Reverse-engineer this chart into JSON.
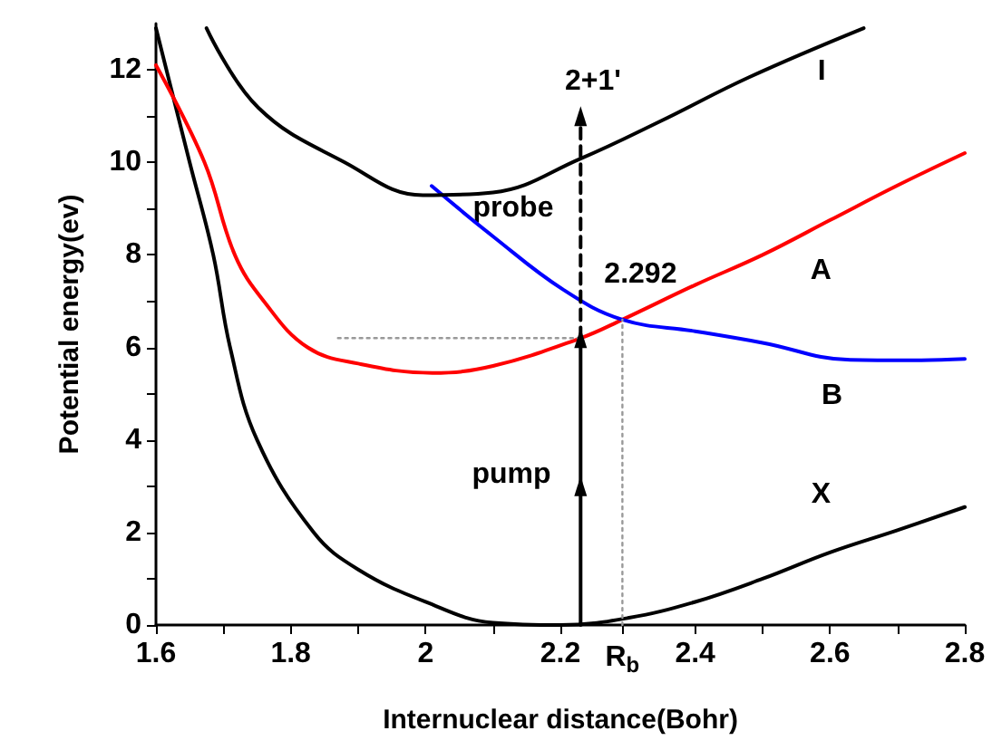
{
  "chart_data": {
    "type": "line",
    "xlabel": "Internuclear distance(Bohr)",
    "ylabel": "Potential energy(ev)",
    "xlim": [
      1.6,
      2.8
    ],
    "ylim": [
      0,
      13
    ],
    "xticks": [
      1.6,
      {
        "value": 1.7,
        "label": null
      },
      1.8,
      {
        "value": 1.9,
        "label": null
      },
      2.0,
      {
        "value": 2.1,
        "label": null
      },
      2.2,
      {
        "value": 2.292,
        "label": "R$_{b}$"
      },
      2.4,
      {
        "value": 2.5,
        "label": null
      },
      2.6,
      {
        "value": 2.7,
        "label": null
      },
      2.8
    ],
    "yticks": [
      0,
      {
        "value": 1,
        "label": null
      },
      2,
      {
        "value": 3,
        "label": null
      },
      4,
      {
        "value": 5,
        "label": null
      },
      6,
      {
        "value": 7,
        "label": null
      },
      8,
      {
        "value": 9,
        "label": null
      },
      10,
      {
        "value": 11,
        "label": null
      },
      12
    ],
    "marker": "none",
    "line_style": "solid",
    "series": [
      {
        "name": "X",
        "color": "#000000",
        "x": [
          1.6,
          1.65,
          1.685,
          1.71,
          1.75,
          1.834,
          1.9,
          2.0,
          2.1,
          2.2,
          2.3,
          2.4,
          2.5,
          2.6,
          2.7,
          2.8
        ],
        "values": [
          12.9,
          10,
          8,
          6,
          4,
          2,
          1.2,
          0.5,
          0.05,
          0,
          0.15,
          0.5,
          1.0,
          1.57,
          2.05,
          2.55
        ]
      },
      {
        "name": "A",
        "color": "#ff0000",
        "x": [
          1.6,
          1.672,
          1.717,
          1.76,
          1.825,
          1.9,
          2.01,
          2.1,
          2.23,
          2.292,
          2.4,
          2.5,
          2.6,
          2.7,
          2.8
        ],
        "values": [
          12.1,
          10,
          8,
          7,
          6,
          5.65,
          5.45,
          5.6,
          6.2,
          6.6,
          7.35,
          8.0,
          8.75,
          9.5,
          10.2
        ]
      },
      {
        "name": "B",
        "color": "#0000ff",
        "x": [
          2.009,
          2.1,
          2.204,
          2.292,
          2.4,
          2.5,
          2.63,
          2.72,
          2.8
        ],
        "values": [
          9.49,
          8.4,
          7.25,
          6.6,
          6.35,
          6.1,
          5.73,
          5.72,
          5.75
        ]
      },
      {
        "name": "I",
        "color": "#000000",
        "x": [
          1.675,
          1.752,
          1.88,
          1.996,
          2.1,
          2.23,
          2.35,
          2.48,
          2.65
        ],
        "values": [
          12.9,
          11.18,
          10,
          9.29,
          9.35,
          10.08,
          10.9,
          11.84,
          12.9
        ]
      },
      {
        "color": "#000000",
        "marker": "triangle",
        "x": [
          2.23,
          2.23,
          2.23
        ],
        "values": [
          0,
          3,
          6.2
        ]
      },
      {
        "color": "#000000",
        "marker": "triangle",
        "line_style": "dashed",
        "x": [
          2.23,
          2.23
        ],
        "values": [
          6.2,
          11.0
        ]
      },
      {
        "color": "#999999",
        "line_style": "dotted",
        "x": [
          1.87,
          2.23
        ],
        "values": [
          6.2,
          6.2
        ]
      },
      {
        "color": "#999999",
        "line_style": "dotted",
        "x": [
          2.292,
          2.292
        ],
        "values": [
          0,
          6.6
        ]
      }
    ],
    "annotations": [
      "2+1'",
      "probe",
      {
        "text": "2.292",
        "x": 2.292,
        "y": 6.6
      },
      "pump"
    ]
  }
}
